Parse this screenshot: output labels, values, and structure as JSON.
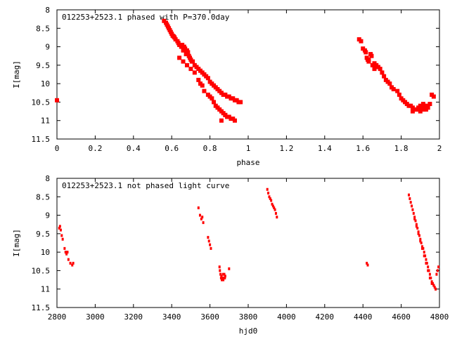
{
  "chart_data": [
    {
      "type": "scatter",
      "title": "012253+2523.1 phased with P=370.0day",
      "xlabel": "phase",
      "ylabel": "I[mag]",
      "xlim": [
        0,
        2
      ],
      "ylim": [
        11.5,
        8
      ],
      "y_inverted": true,
      "grid": false,
      "x_ticks": [
        "0",
        "0.2",
        "0.4",
        "0.6",
        "0.8",
        "1",
        "1.2",
        "1.4",
        "1.6",
        "1.8",
        "2"
      ],
      "y_ticks": [
        "8",
        "8.5",
        "9",
        "9.5",
        "10",
        "10.5",
        "11",
        "11.5"
      ],
      "marker": "square",
      "color": "#ff0000",
      "series": [
        {
          "x": [
            0.0,
            0.56,
            0.57,
            0.575,
            0.58,
            0.585,
            0.59,
            0.595,
            0.6,
            0.605,
            0.61,
            0.615,
            0.62,
            0.63,
            0.635,
            0.64,
            0.65,
            0.655,
            0.66,
            0.665,
            0.67,
            0.675,
            0.68,
            0.685,
            0.69,
            0.695,
            0.7,
            0.705,
            0.71,
            0.72,
            0.73,
            0.74,
            0.75,
            0.76,
            0.77,
            0.78,
            0.79,
            0.8,
            0.81,
            0.82,
            0.83,
            0.84,
            0.85,
            0.86,
            0.87,
            0.88,
            0.89,
            0.9,
            0.91,
            0.92,
            0.93,
            0.94,
            0.95,
            0.96,
            0.64,
            0.66,
            0.68,
            0.7,
            0.72,
            0.74,
            0.75,
            0.76,
            0.77,
            0.79,
            0.8,
            0.81,
            0.82,
            0.83,
            0.84,
            0.85,
            0.86,
            0.87,
            0.88,
            0.89,
            0.9,
            0.91,
            0.92,
            0.93,
            0.86,
            0.88,
            1.58,
            1.59,
            1.6,
            1.61,
            1.615,
            1.62,
            1.625,
            1.63,
            1.64,
            1.645,
            1.65,
            1.66,
            1.67,
            1.68,
            1.69,
            1.7,
            1.71,
            1.72,
            1.73,
            1.74,
            1.75,
            1.76,
            1.78,
            1.79,
            1.8,
            1.81,
            1.82,
            1.83,
            1.84,
            1.85,
            1.86,
            1.87,
            1.88,
            1.89,
            1.9,
            1.905,
            1.91,
            1.915,
            1.92,
            1.925,
            1.93,
            1.935,
            1.94,
            1.95,
            1.96,
            1.97,
            1.63,
            1.66,
            1.86,
            1.88,
            1.9,
            1.92
          ],
          "y": [
            10.45,
            8.3,
            8.35,
            8.4,
            8.45,
            8.5,
            8.55,
            8.6,
            8.65,
            8.7,
            8.72,
            8.75,
            8.8,
            8.85,
            8.9,
            8.95,
            9.0,
            8.95,
            9.1,
            9.0,
            9.05,
            9.2,
            9.1,
            9.15,
            9.25,
            9.3,
            9.35,
            9.4,
            9.4,
            9.5,
            9.55,
            9.6,
            9.65,
            9.7,
            9.75,
            9.8,
            9.85,
            9.95,
            10.0,
            10.05,
            10.1,
            10.15,
            10.2,
            10.25,
            10.3,
            10.3,
            10.35,
            10.35,
            10.4,
            10.4,
            10.45,
            10.45,
            10.5,
            10.5,
            9.3,
            9.4,
            9.5,
            9.6,
            9.7,
            9.9,
            10.0,
            10.05,
            10.2,
            10.3,
            10.35,
            10.4,
            10.5,
            10.6,
            10.65,
            10.7,
            10.75,
            10.8,
            10.85,
            10.9,
            10.9,
            10.95,
            10.95,
            11.0,
            11.0,
            10.85,
            8.8,
            8.85,
            9.05,
            9.1,
            9.15,
            9.3,
            9.35,
            9.4,
            9.2,
            9.25,
            9.5,
            9.6,
            9.5,
            9.55,
            9.6,
            9.7,
            9.8,
            9.9,
            9.95,
            10.0,
            10.1,
            10.15,
            10.2,
            10.3,
            10.4,
            10.45,
            10.5,
            10.55,
            10.6,
            10.6,
            10.65,
            10.7,
            10.7,
            10.65,
            10.6,
            10.65,
            10.7,
            10.55,
            10.6,
            10.65,
            10.7,
            10.6,
            10.65,
            10.55,
            10.3,
            10.35,
            9.35,
            9.45,
            10.75,
            10.7,
            10.75,
            10.7
          ]
        }
      ]
    },
    {
      "type": "scatter",
      "title": "012253+2523.1 not phased light curve",
      "xlabel": "hjd0",
      "ylabel": "I[mag]",
      "xlim": [
        2800,
        4800
      ],
      "ylim": [
        11.5,
        8
      ],
      "y_inverted": true,
      "grid": false,
      "x_ticks": [
        "2800",
        "3000",
        "3200",
        "3400",
        "3600",
        "3800",
        "4000",
        "4200",
        "4400",
        "4600",
        "4800"
      ],
      "y_ticks": [
        "8",
        "8.5",
        "9",
        "9.5",
        "10",
        "10.5",
        "11",
        "11.5"
      ],
      "marker": "dot",
      "color": "#ff0000",
      "series": [
        {
          "x": [
            2812,
            2816,
            2820,
            2825,
            2830,
            2840,
            2845,
            2850,
            2855,
            2860,
            2870,
            2880,
            2885,
            3540,
            3548,
            3555,
            3560,
            3565,
            3590,
            3595,
            3600,
            3605,
            3650,
            3652,
            3655,
            3658,
            3660,
            3662,
            3665,
            3668,
            3670,
            3672,
            3675,
            3678,
            3680,
            3700,
            3900,
            3905,
            3910,
            3915,
            3920,
            3925,
            3930,
            3935,
            3940,
            3945,
            3950,
            4420,
            4425,
            4640,
            4645,
            4650,
            4655,
            4660,
            4665,
            4670,
            4675,
            4680,
            4685,
            4690,
            4695,
            4700,
            4705,
            4710,
            4715,
            4720,
            4725,
            4730,
            4735,
            4740,
            4745,
            4750,
            4755,
            4760,
            4765,
            4770,
            4775,
            4780,
            4785,
            4790,
            4795,
            4670,
            4680,
            4690,
            4700,
            4710,
            4720,
            4730,
            4740,
            4750,
            4760,
            4770,
            4780
          ],
          "y": [
            9.35,
            9.3,
            9.4,
            9.55,
            9.65,
            9.9,
            10.0,
            10.05,
            10.0,
            10.2,
            10.3,
            10.35,
            10.3,
            8.8,
            9.0,
            9.1,
            9.05,
            9.2,
            9.6,
            9.7,
            9.8,
            9.9,
            10.4,
            10.5,
            10.6,
            10.7,
            10.65,
            10.75,
            10.7,
            10.6,
            10.75,
            10.7,
            10.6,
            10.7,
            10.65,
            10.45,
            8.3,
            8.4,
            8.5,
            8.55,
            8.6,
            8.7,
            8.75,
            8.8,
            8.85,
            8.95,
            9.05,
            10.3,
            10.35,
            8.45,
            8.55,
            8.65,
            8.75,
            8.85,
            8.95,
            9.05,
            9.15,
            9.25,
            9.35,
            9.45,
            9.55,
            9.65,
            9.75,
            9.85,
            9.9,
            10.0,
            10.1,
            10.2,
            10.3,
            10.4,
            10.5,
            10.6,
            10.7,
            10.8,
            10.85,
            10.9,
            10.95,
            11.0,
            10.6,
            10.5,
            10.4,
            9.1,
            9.3,
            9.5,
            9.7,
            9.9,
            10.1,
            10.3,
            10.5,
            10.7,
            10.85,
            10.9,
            11.0
          ]
        }
      ]
    }
  ]
}
